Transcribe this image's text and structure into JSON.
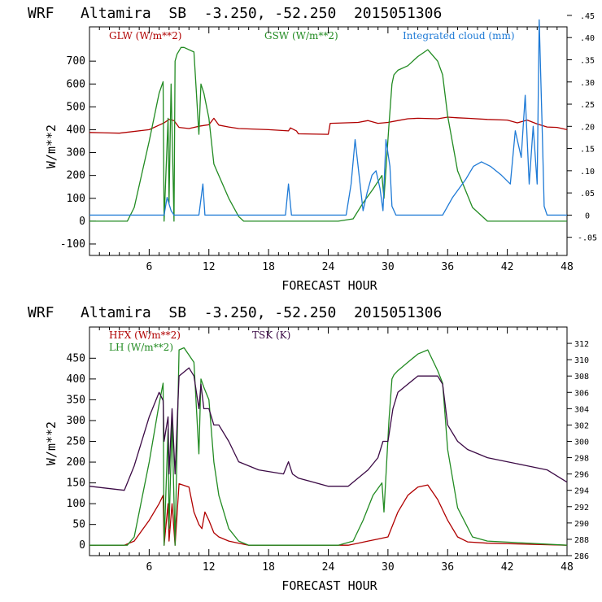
{
  "chart_data": [
    {
      "type": "line",
      "title": "WRF   Altamira  SB  -3.250, -52.250  2015051306",
      "xlabel": "FORECAST HOUR",
      "ylabel": "W/m**2",
      "xlim": [
        0,
        48
      ],
      "ylim": [
        -150,
        850
      ],
      "xticks": [
        6,
        12,
        18,
        24,
        30,
        36,
        42,
        48
      ],
      "yticks": [
        -100,
        0,
        100,
        200,
        300,
        400,
        500,
        600,
        700
      ],
      "y2lim": [
        -0.0909,
        0.4242
      ],
      "y2ticks": [
        {
          "v": -0.05,
          "label": "-.05"
        },
        {
          "v": 0,
          "label": "0"
        },
        {
          "v": 0.05,
          "label": ".05"
        },
        {
          "v": 0.1,
          "label": ".10"
        },
        {
          "v": 0.15,
          "label": ".15"
        },
        {
          "v": 0.2,
          "label": ".20"
        },
        {
          "v": 0.25,
          "label": ".25"
        },
        {
          "v": 0.3,
          "label": ".30"
        },
        {
          "v": 0.35,
          "label": ".35"
        },
        {
          "v": 0.4,
          "label": ".40"
        },
        {
          "v": 0.45,
          "label": ".45"
        }
      ],
      "series": [
        {
          "name": "GLW (W/m**2)",
          "color": "#b00000",
          "axis": "left",
          "x": [
            0,
            3,
            6,
            7,
            7.5,
            8,
            8.5,
            9,
            10,
            11,
            12,
            12.5,
            13,
            14,
            15,
            18,
            20,
            20.2,
            20.8,
            21,
            24,
            24.2,
            27,
            28,
            29,
            30,
            31,
            32,
            33,
            35,
            36,
            37,
            38,
            40,
            42,
            43,
            44,
            45,
            46,
            47,
            48
          ],
          "y": [
            388,
            385,
            400,
            420,
            430,
            445,
            440,
            410,
            405,
            415,
            422,
            450,
            420,
            412,
            405,
            400,
            395,
            408,
            395,
            382,
            380,
            428,
            432,
            440,
            428,
            432,
            440,
            448,
            450,
            448,
            455,
            452,
            450,
            445,
            442,
            430,
            442,
            425,
            412,
            410,
            400
          ]
        },
        {
          "name": "GSW (W/m**2)",
          "color": "#228b22",
          "axis": "left",
          "x": [
            0,
            3.8,
            4.5,
            6,
            7,
            7.4,
            7.5,
            7.9,
            8,
            8.2,
            8.5,
            8.6,
            8.8,
            9.2,
            9.5,
            10.5,
            11,
            11.2,
            11.5,
            12,
            12.5,
            13,
            14,
            15,
            15.5,
            25,
            26.5,
            27.5,
            28.5,
            29.4,
            29.6,
            30.1,
            30.4,
            30.6,
            31,
            32,
            33,
            34,
            35,
            35.5,
            36,
            37,
            38.5,
            40,
            48
          ],
          "y": [
            0,
            0,
            60,
            350,
            560,
            610,
            0,
            450,
            80,
            600,
            0,
            700,
            730,
            760,
            760,
            740,
            380,
            600,
            560,
            450,
            250,
            200,
            100,
            20,
            0,
            0,
            10,
            80,
            140,
            200,
            100,
            420,
            600,
            640,
            660,
            680,
            720,
            750,
            700,
            640,
            460,
            220,
            60,
            0,
            0
          ]
        },
        {
          "name": "Integrated cloud (mm)",
          "color": "#1e7ad6",
          "axis": "right",
          "x": [
            0,
            7.5,
            7.8,
            8.2,
            8.5,
            11,
            11.4,
            11.6,
            12,
            19.7,
            20,
            20.3,
            25.8,
            26.3,
            26.7,
            27.1,
            27.5,
            27.9,
            28.4,
            28.8,
            29.2,
            29.5,
            29.8,
            30.2,
            30.4,
            30.8,
            35.5,
            36.5,
            37.8,
            38.6,
            39.4,
            40.3,
            41.4,
            42.3,
            42.8,
            43.4,
            43.8,
            44.2,
            44.6,
            45,
            45.2,
            45.5,
            45.7,
            46,
            47.5,
            48
          ],
          "y": [
            0,
            0,
            0.04,
            0.01,
            0,
            0,
            0.07,
            0,
            0,
            0,
            0.07,
            0,
            0,
            0.07,
            0.17,
            0.09,
            0.01,
            0.05,
            0.09,
            0.1,
            0.06,
            0.01,
            0.17,
            0.11,
            0.02,
            0,
            0,
            0.04,
            0.08,
            0.11,
            0.12,
            0.11,
            0.09,
            0.07,
            0.19,
            0.13,
            0.27,
            0.07,
            0.2,
            0.07,
            0.44,
            0.2,
            0.02,
            0,
            0,
            0
          ]
        }
      ]
    },
    {
      "type": "line",
      "title": "WRF   Altamira  SB  -3.250, -52.250  2015051306",
      "xlabel": "FORECAST HOUR",
      "ylabel": "W/m**2",
      "xlim": [
        0,
        48
      ],
      "ylim": [
        -25,
        525
      ],
      "xticks": [
        6,
        12,
        18,
        24,
        30,
        36,
        42,
        48
      ],
      "yticks": [
        0,
        50,
        100,
        150,
        200,
        250,
        300,
        350,
        400,
        450
      ],
      "y2lim": [
        286,
        314
      ],
      "y2ticks": [
        {
          "v": 286,
          "label": "286"
        },
        {
          "v": 288,
          "label": "288"
        },
        {
          "v": 290,
          "label": "290"
        },
        {
          "v": 292,
          "label": "292"
        },
        {
          "v": 294,
          "label": "294"
        },
        {
          "v": 296,
          "label": "296"
        },
        {
          "v": 298,
          "label": "298"
        },
        {
          "v": 300,
          "label": "300"
        },
        {
          "v": 302,
          "label": "302"
        },
        {
          "v": 304,
          "label": "304"
        },
        {
          "v": 306,
          "label": "306"
        },
        {
          "v": 308,
          "label": "308"
        },
        {
          "v": 310,
          "label": "310"
        },
        {
          "v": 312,
          "label": "312"
        }
      ],
      "series": [
        {
          "name": "HFX (W/m**2)",
          "color": "#b00000",
          "axis": "left",
          "x": [
            0,
            3.5,
            4.5,
            6,
            7,
            7.4,
            7.5,
            7.9,
            8,
            8.3,
            8.6,
            9,
            10,
            10.5,
            11,
            11.3,
            11.6,
            12,
            12.5,
            13,
            14,
            15,
            16,
            26,
            27,
            28,
            29,
            30,
            31,
            32,
            33,
            34,
            35,
            36,
            37,
            38,
            40,
            48
          ],
          "y": [
            0,
            0,
            10,
            60,
            100,
            120,
            0,
            100,
            10,
            100,
            0,
            148,
            140,
            80,
            50,
            40,
            80,
            60,
            30,
            20,
            10,
            5,
            0,
            0,
            5,
            10,
            15,
            20,
            80,
            120,
            140,
            145,
            110,
            60,
            20,
            8,
            5,
            0
          ]
        },
        {
          "name": "LH (W/m**2)",
          "color": "#228b22",
          "axis": "left",
          "x": [
            0,
            3.8,
            4.5,
            6,
            7,
            7.4,
            7.5,
            7.9,
            8,
            8.3,
            8.6,
            9,
            9.5,
            10.5,
            11,
            11.2,
            11.5,
            12,
            12.5,
            13,
            14,
            15,
            16,
            25,
            26.5,
            27.5,
            28.5,
            29.4,
            29.6,
            30.1,
            30.4,
            30.6,
            31,
            32,
            33,
            34,
            35,
            35.5,
            36,
            37,
            38.5,
            40,
            48
          ],
          "y": [
            0,
            0,
            20,
            200,
            340,
            390,
            0,
            280,
            40,
            300,
            0,
            470,
            475,
            440,
            220,
            400,
            380,
            350,
            200,
            120,
            40,
            10,
            0,
            0,
            10,
            60,
            120,
            150,
            80,
            300,
            400,
            410,
            420,
            440,
            460,
            470,
            420,
            390,
            230,
            90,
            20,
            10,
            0
          ]
        },
        {
          "name": "TSK (K)",
          "color": "#3b0a45",
          "axis": "right",
          "x": [
            0,
            3.5,
            4.5,
            6,
            7,
            7.4,
            7.5,
            7.9,
            8,
            8.3,
            8.6,
            9,
            10,
            10.5,
            11,
            11.2,
            11.5,
            12,
            12.5,
            13,
            14,
            15,
            17,
            19.5,
            20,
            20.4,
            21,
            24,
            26,
            28,
            29,
            29.5,
            30,
            30.5,
            31,
            32,
            33,
            34,
            35,
            35.5,
            36,
            37,
            38,
            40,
            42,
            44,
            46,
            48
          ],
          "y": [
            294.5,
            294,
            297,
            303,
            306,
            305,
            300,
            303,
            296,
            304,
            296,
            308,
            309,
            308,
            304,
            307,
            304,
            304,
            302,
            302,
            300,
            297.5,
            296.5,
            296,
            297.5,
            296,
            295.5,
            294.5,
            294.5,
            296.5,
            298,
            300,
            300,
            304,
            306,
            307,
            308,
            308,
            308,
            307,
            302,
            300,
            299,
            298,
            297.5,
            297,
            296.5,
            295
          ]
        }
      ]
    }
  ]
}
